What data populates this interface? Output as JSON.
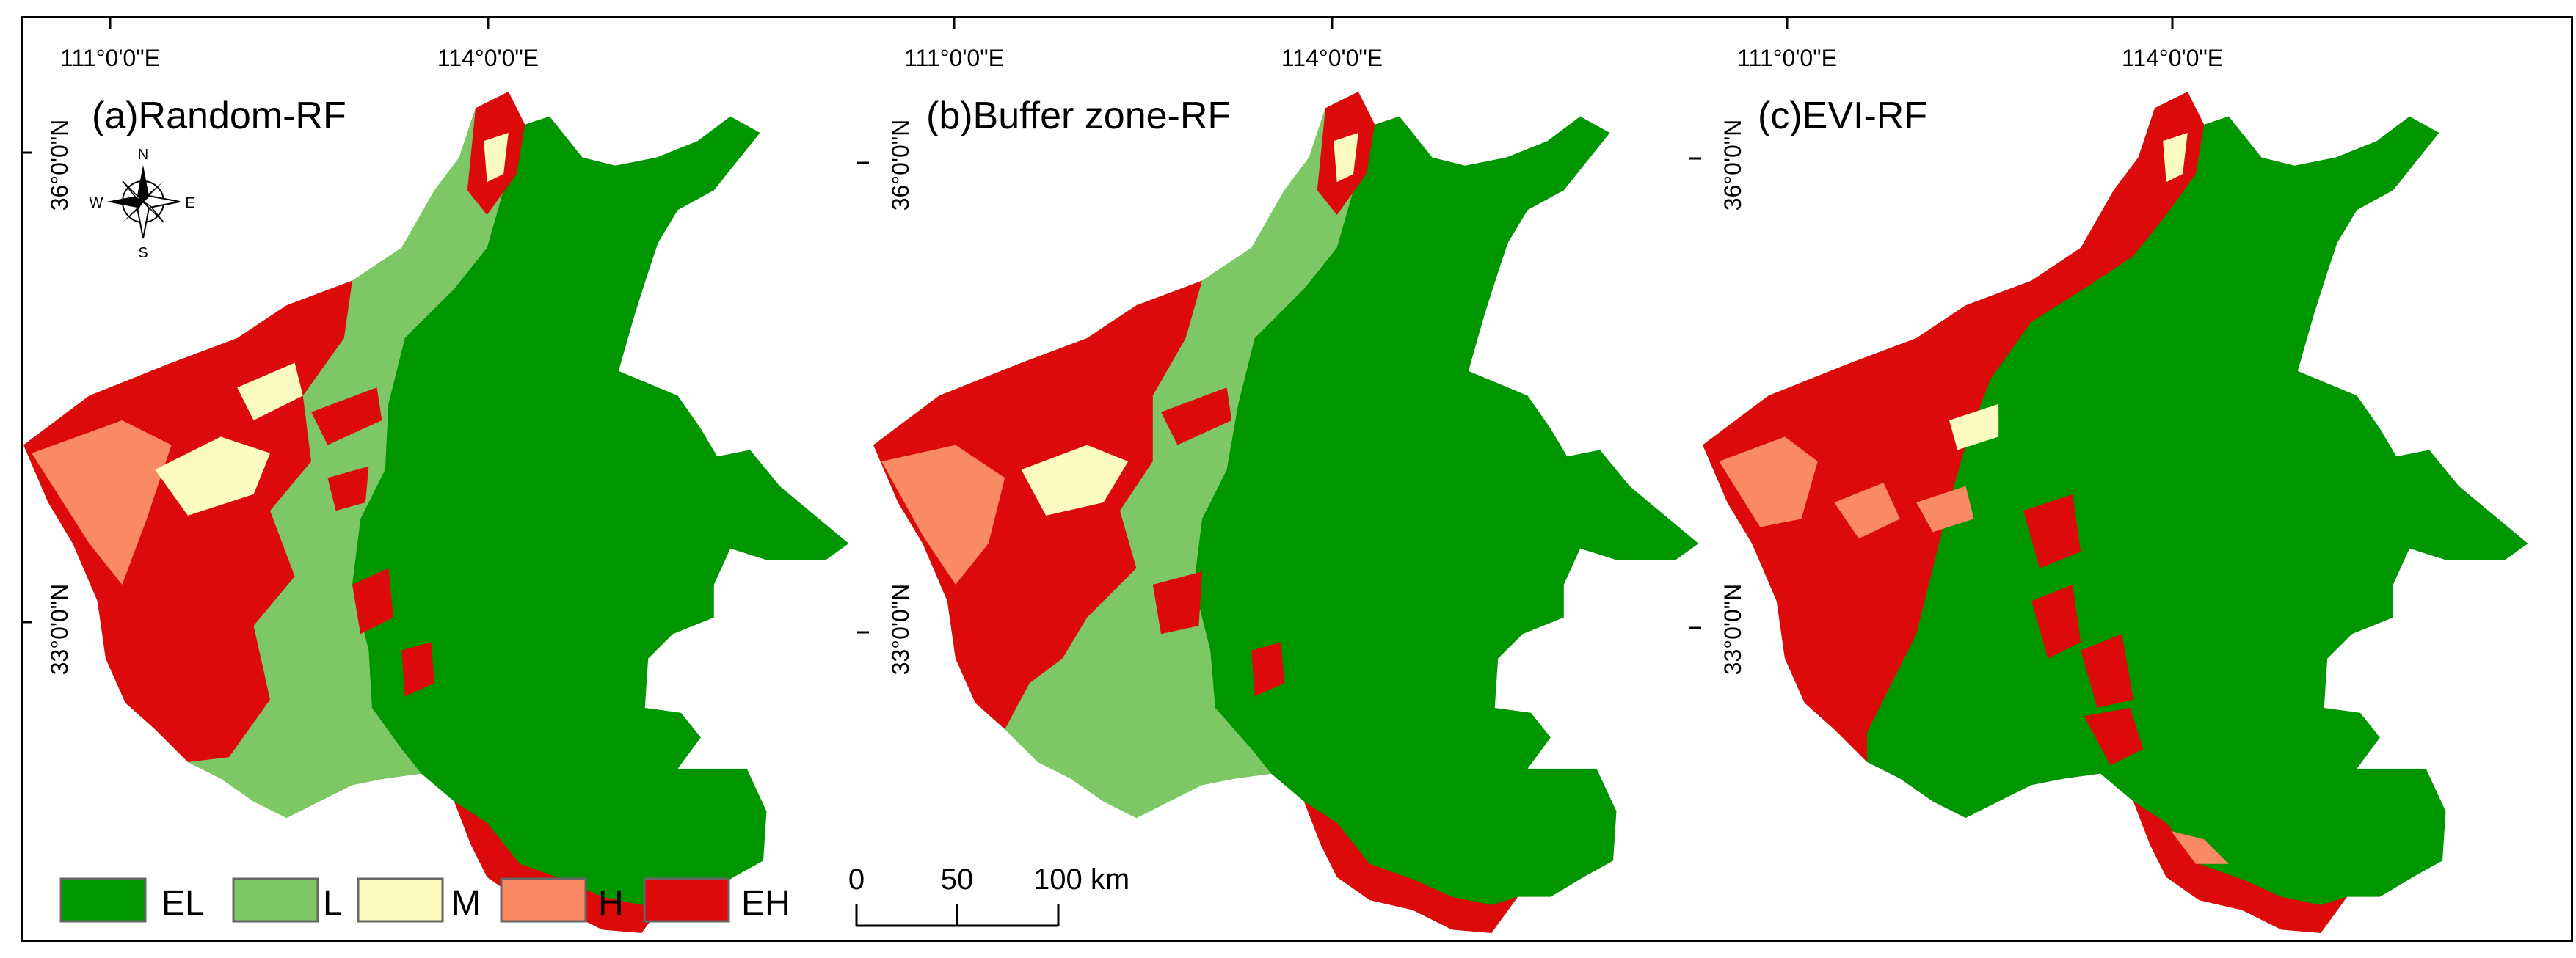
{
  "panels": [
    {
      "title": "(a)Random-RF",
      "lon_labels": [
        "111°0'0\"E",
        "114°0'0\"E"
      ],
      "lat_labels": [
        "36°0'0\"N",
        "33°0'0\"N"
      ]
    },
    {
      "title": "(b)Buffer zone-RF",
      "lon_labels": [
        "111°0'0\"E",
        "114°0'0\"E"
      ],
      "lat_labels": [
        "36°0'0\"N",
        "33°0'0\"N"
      ]
    },
    {
      "title": "(c)EVI-RF",
      "lon_labels": [
        "111°0'0\"E",
        "114°0'0\"E"
      ],
      "lat_labels": [
        "36°0'0\"N",
        "33°0'0\"N"
      ]
    }
  ],
  "compass": {
    "n": "N",
    "s": "S",
    "e": "E",
    "w": "W"
  },
  "legend": [
    {
      "label": "EL",
      "color": "#009600"
    },
    {
      "label": "L",
      "color": "#7dc864"
    },
    {
      "label": "M",
      "color": "#fdfcc0"
    },
    {
      "label": "H",
      "color": "#fa8a64"
    },
    {
      "label": "EH",
      "color": "#dc0a0a"
    }
  ],
  "scale_bar": {
    "ticks": [
      "0",
      "50",
      "100 km"
    ]
  }
}
